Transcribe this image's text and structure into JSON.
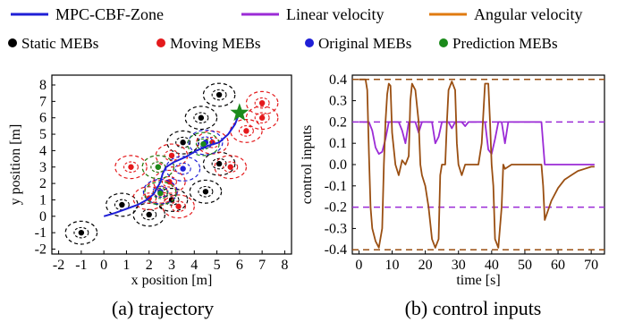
{
  "legend": {
    "row1": [
      {
        "label": "MPC-CBF-Zone",
        "color": "#1f1fd6",
        "kind": "line"
      },
      {
        "label": "Linear velocity",
        "color": "#9b2bd6",
        "kind": "line"
      },
      {
        "label": "Angular velocity",
        "color": "#e07b10",
        "kind": "line"
      }
    ],
    "row2": [
      {
        "label": "Static MEBs",
        "color": "#000000",
        "kind": "dot"
      },
      {
        "label": "Moving MEBs",
        "color": "#e41a1c",
        "kind": "dot"
      },
      {
        "label": "Original MEBs",
        "color": "#1f1fd6",
        "kind": "dot"
      },
      {
        "label": "Prediction MEBs",
        "color": "#1b8a1b",
        "kind": "dot"
      }
    ]
  },
  "chart_data": [
    {
      "type": "scatter",
      "caption": "(a) trajectory",
      "xlabel": "x position [m]",
      "ylabel": "y position [m]",
      "xlim": [
        -2.3,
        8.3
      ],
      "ylim": [
        -2.3,
        8.6
      ],
      "xticks": [
        -2,
        -1,
        0,
        1,
        2,
        3,
        4,
        5,
        6,
        7,
        8
      ],
      "yticks": [
        -2,
        -1,
        0,
        1,
        2,
        3,
        4,
        5,
        6,
        7,
        8
      ],
      "colors": {
        "static": "#000000",
        "moving": "#e41a1c",
        "original": "#1f1fd6",
        "prediction": "#1b8a1b",
        "path": "#1f1fd6",
        "goal": "#1b8a1b"
      },
      "static_mebs": [
        [
          -1,
          -1
        ],
        [
          0.8,
          0.7
        ],
        [
          2.0,
          0.1
        ],
        [
          3.0,
          1.0
        ],
        [
          4.5,
          1.5
        ],
        [
          3.5,
          4.5
        ],
        [
          4.3,
          6.0
        ],
        [
          5.1,
          7.4
        ],
        [
          5.1,
          3.2
        ]
      ],
      "moving_mebs": [
        [
          1.2,
          3.0
        ],
        [
          2.4,
          3.0
        ],
        [
          2.9,
          2.1
        ],
        [
          2.5,
          1.5
        ],
        [
          3.3,
          0.6
        ],
        [
          3.0,
          3.7
        ],
        [
          4.8,
          4.5
        ],
        [
          5.6,
          3.0
        ],
        [
          7.0,
          6.9
        ],
        [
          7.0,
          6.0
        ],
        [
          6.3,
          5.2
        ],
        [
          2.0,
          1.1
        ]
      ],
      "original_mebs": [
        [
          3.5,
          2.9
        ],
        [
          4.5,
          4.5
        ],
        [
          2.5,
          1.5
        ]
      ],
      "prediction_mebs": [
        [
          2.4,
          3.0
        ],
        [
          2.5,
          1.4
        ],
        [
          4.4,
          4.4
        ]
      ],
      "path": [
        [
          0,
          0
        ],
        [
          0.5,
          0.2
        ],
        [
          1.0,
          0.45
        ],
        [
          1.5,
          0.7
        ],
        [
          1.9,
          1.0
        ],
        [
          2.2,
          1.35
        ],
        [
          2.35,
          1.7
        ],
        [
          2.5,
          2.1
        ],
        [
          2.6,
          2.6
        ],
        [
          2.75,
          3.0
        ],
        [
          3.1,
          3.3
        ],
        [
          3.6,
          3.6
        ],
        [
          4.1,
          4.0
        ],
        [
          4.6,
          4.3
        ],
        [
          5.1,
          4.5
        ],
        [
          5.5,
          5.0
        ],
        [
          5.8,
          5.6
        ],
        [
          6.0,
          6.3
        ]
      ],
      "goal": [
        6.0,
        6.3
      ]
    },
    {
      "type": "line",
      "caption": "(b) control inputs",
      "xlabel": "time [s]",
      "ylabel": "control inputs",
      "xlim": [
        -2,
        74
      ],
      "ylim": [
        -0.42,
        0.42
      ],
      "xticks": [
        0,
        10,
        20,
        30,
        40,
        50,
        60,
        70
      ],
      "yticks": [
        -0.4,
        -0.3,
        -0.2,
        -0.1,
        0.0,
        0.1,
        0.2,
        0.3,
        0.4
      ],
      "limits": {
        "angular": [
          0.4,
          -0.4
        ],
        "linear": [
          0.2,
          -0.2
        ]
      },
      "series": [
        {
          "name": "Linear velocity",
          "color": "#9b2bd6",
          "points": [
            [
              0,
              0.2
            ],
            [
              3,
              0.2
            ],
            [
              4,
              0.16
            ],
            [
              5,
              0.08
            ],
            [
              6,
              0.05
            ],
            [
              7,
              0.06
            ],
            [
              8,
              0.12
            ],
            [
              9,
              0.2
            ],
            [
              12,
              0.2
            ],
            [
              13,
              0.16
            ],
            [
              14,
              0.1
            ],
            [
              15,
              0.2
            ],
            [
              17,
              0.2
            ],
            [
              18,
              0.15
            ],
            [
              19,
              0.2
            ],
            [
              22,
              0.2
            ],
            [
              23,
              0.1
            ],
            [
              24,
              0.13
            ],
            [
              25,
              0.2
            ],
            [
              27,
              0.2
            ],
            [
              28,
              0.17
            ],
            [
              29,
              0.2
            ],
            [
              31,
              0.2
            ],
            [
              32,
              0.18
            ],
            [
              33,
              0.2
            ],
            [
              38,
              0.2
            ],
            [
              39,
              0.07
            ],
            [
              40,
              0.05
            ],
            [
              41,
              0.12
            ],
            [
              42,
              0.2
            ],
            [
              43,
              0.2
            ],
            [
              44,
              0.1
            ],
            [
              45,
              0.2
            ],
            [
              55,
              0.2
            ],
            [
              56,
              0.0
            ],
            [
              71,
              0.0
            ]
          ]
        },
        {
          "name": "Angular velocity",
          "color": "#9a4f12",
          "points": [
            [
              0,
              0.4
            ],
            [
              1,
              0.4
            ],
            [
              2,
              0.4
            ],
            [
              2.5,
              0.35
            ],
            [
              3,
              0.05
            ],
            [
              3.5,
              -0.2
            ],
            [
              4,
              -0.3
            ],
            [
              5,
              -0.36
            ],
            [
              6,
              -0.39
            ],
            [
              7,
              -0.3
            ],
            [
              7.5,
              0.0
            ],
            [
              8,
              0.2
            ],
            [
              8.5,
              0.33
            ],
            [
              9,
              0.38
            ],
            [
              9.5,
              0.37
            ],
            [
              10,
              0.15
            ],
            [
              11,
              0.0
            ],
            [
              12,
              -0.05
            ],
            [
              13,
              0.02
            ],
            [
              14,
              0.0
            ],
            [
              15,
              0.04
            ],
            [
              15.5,
              0.3
            ],
            [
              16,
              0.38
            ],
            [
              17,
              0.35
            ],
            [
              18,
              0.2
            ],
            [
              18.5,
              0.0
            ],
            [
              19,
              -0.05
            ],
            [
              20,
              -0.1
            ],
            [
              21,
              -0.2
            ],
            [
              22,
              -0.35
            ],
            [
              23,
              -0.39
            ],
            [
              24,
              -0.35
            ],
            [
              24.5,
              -0.05
            ],
            [
              25,
              0.0
            ],
            [
              26,
              0.0
            ],
            [
              26.5,
              0.2
            ],
            [
              27,
              0.35
            ],
            [
              28,
              0.39
            ],
            [
              29,
              0.35
            ],
            [
              29.5,
              0.1
            ],
            [
              30,
              0.0
            ],
            [
              31,
              -0.05
            ],
            [
              32,
              0.0
            ],
            [
              33,
              0.0
            ],
            [
              34,
              0.0
            ],
            [
              35,
              0.0
            ],
            [
              36,
              0.0
            ],
            [
              37,
              0.1
            ],
            [
              38,
              0.38
            ],
            [
              39,
              0.38
            ],
            [
              39.5,
              0.2
            ],
            [
              40,
              0.0
            ],
            [
              40.5,
              -0.1
            ],
            [
              41,
              -0.35
            ],
            [
              42,
              -0.39
            ],
            [
              43,
              -0.2
            ],
            [
              43.5,
              0.0
            ],
            [
              44,
              -0.02
            ],
            [
              45,
              -0.01
            ],
            [
              46,
              0.0
            ],
            [
              50,
              0.0
            ],
            [
              54,
              0.0
            ],
            [
              55,
              0.0
            ],
            [
              55.5,
              -0.1
            ],
            [
              56,
              -0.26
            ],
            [
              58,
              -0.17
            ],
            [
              60,
              -0.11
            ],
            [
              62,
              -0.07
            ],
            [
              64,
              -0.05
            ],
            [
              66,
              -0.03
            ],
            [
              68,
              -0.02
            ],
            [
              70,
              -0.01
            ],
            [
              71,
              -0.01
            ]
          ]
        }
      ]
    }
  ]
}
